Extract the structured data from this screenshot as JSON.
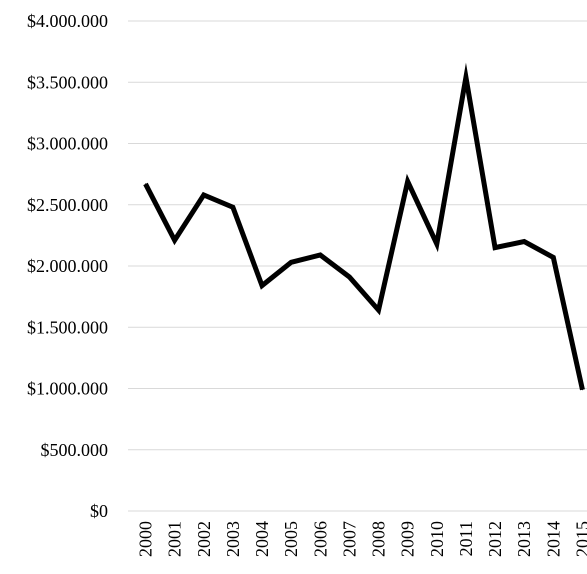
{
  "chart_data": {
    "type": "line",
    "title": "",
    "xlabel": "",
    "ylabel": "",
    "categories": [
      "2000",
      "2001",
      "2002",
      "2003",
      "2004",
      "2005",
      "2006",
      "2007",
      "2008",
      "2009",
      "2010",
      "2011",
      "2012",
      "2013",
      "2014",
      "2015"
    ],
    "series": [
      {
        "values": [
          2670000,
          2210000,
          2580000,
          2480000,
          1840000,
          2030000,
          2090000,
          1910000,
          1640000,
          2690000,
          2180000,
          3540000,
          2150000,
          2200000,
          2070000,
          990000
        ],
        "color": "#000000"
      }
    ],
    "ylim": [
      0,
      4000000
    ],
    "y_ticks": [
      {
        "value": 0,
        "label": "$0"
      },
      {
        "value": 500000,
        "label": "$500.000"
      },
      {
        "value": 1000000,
        "label": "$1.000.000"
      },
      {
        "value": 1500000,
        "label": "$1.500.000"
      },
      {
        "value": 2000000,
        "label": "$2.000.000"
      },
      {
        "value": 2500000,
        "label": "$2.500.000"
      },
      {
        "value": 3000000,
        "label": "$3.000.000"
      },
      {
        "value": 3500000,
        "label": "$3.500.000"
      },
      {
        "value": 4000000,
        "label": "$4.000.000"
      }
    ],
    "grid": true,
    "grid_color": "#d9d9d9",
    "legend": "none"
  }
}
